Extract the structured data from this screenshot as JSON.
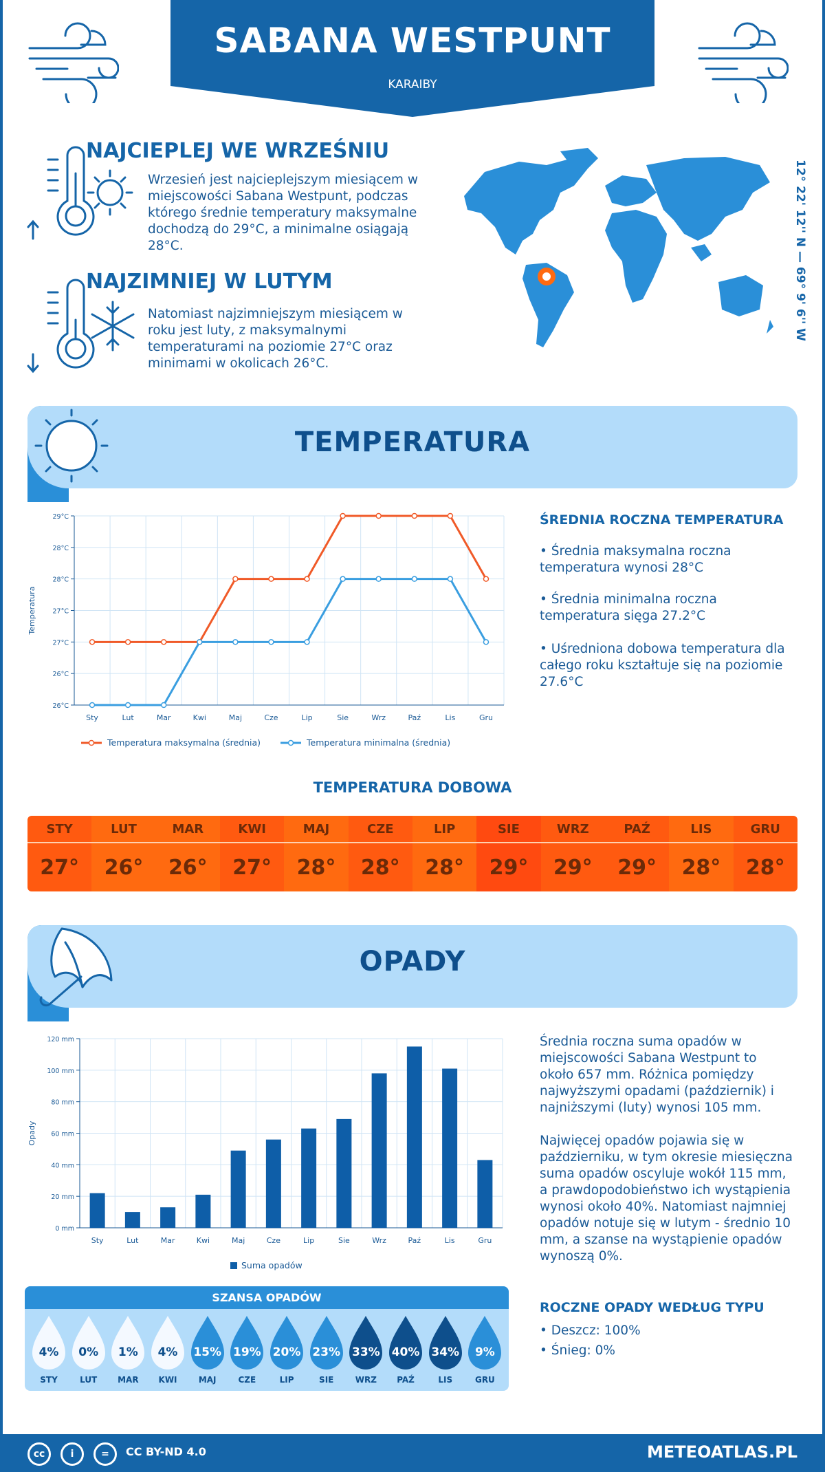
{
  "header": {
    "title": "SABANA WESTPUNT",
    "subtitle": "KARAIBY"
  },
  "warmest": {
    "title": "NAJCIEPLEJ WE WRZEŚNIU",
    "text": "Wrzesień jest najcieplejszym miesiącem w miejscowości Sabana Westpunt, podczas którego średnie temperatury maksymalne dochodzą do 29°C, a minimalne osiągają 28°C."
  },
  "coldest": {
    "title": "NAJZIMNIEJ W LUTYM",
    "text": "Natomiast najzimniejszym miesiącem w roku jest luty, z maksymalnymi temperaturami na poziomie 27°C oraz minimami w okolicach 26°C."
  },
  "coords": "12° 22' 12'' N — 69° 9' 6'' W",
  "temperature_section": {
    "title": "TEMPERATURA",
    "side_title": "ŚREDNIA ROCZNA TEMPERATURA",
    "bullets": [
      "• Średnia maksymalna roczna temperatura wynosi 28°C",
      "• Średnia minimalna roczna temperatura sięga 27.2°C",
      "• Uśredniona dobowa temperatura dla całego roku kształtuje się na poziomie 27.6°C"
    ]
  },
  "daily": {
    "title": "TEMPERATURA DOBOWA",
    "months": [
      "STY",
      "LUT",
      "MAR",
      "KWI",
      "MAJ",
      "CZE",
      "LIP",
      "SIE",
      "WRZ",
      "PAŹ",
      "LIS",
      "GRU"
    ],
    "values": [
      "27°",
      "26°",
      "26°",
      "27°",
      "28°",
      "28°",
      "28°",
      "29°",
      "29°",
      "29°",
      "28°",
      "28°"
    ],
    "colors": [
      "#ff5a10",
      "#ff6a10",
      "#ff6a10",
      "#ff5a10",
      "#ff6a10",
      "#ff5a10",
      "#ff6a10",
      "#ff4a10",
      "#ff5a10",
      "#ff5a10",
      "#ff6a10",
      "#ff5a10"
    ]
  },
  "precip_section": {
    "title": "OPADY",
    "text1": "Średnia roczna suma opadów w miejscowości Sabana Westpunt to około 657 mm. Różnica pomiędzy najwyższymi opadami (październik) i najniższymi (luty) wynosi 105 mm.",
    "text2": "Najwięcej opadów pojawia się w październiku, w tym okresie miesięczna suma opadów oscyluje wokół 115 mm, a prawdopodobieństwo ich wystąpienia wynosi około 40%. Natomiast najmniej opadów notuje się w lutym - średnio 10 mm, a szanse na wystąpienie opadów wynoszą 0%.",
    "type_title": "ROCZNE OPADY WEDŁUG TYPU",
    "types": [
      "• Deszcz: 100%",
      "• Śnieg: 0%"
    ]
  },
  "chance": {
    "title": "SZANSA OPADÓW",
    "months": [
      "STY",
      "LUT",
      "MAR",
      "KWI",
      "MAJ",
      "CZE",
      "LIP",
      "SIE",
      "WRZ",
      "PAŹ",
      "LIS",
      "GRU"
    ],
    "values": [
      "4%",
      "0%",
      "1%",
      "4%",
      "15%",
      "19%",
      "20%",
      "23%",
      "33%",
      "40%",
      "34%",
      "9%"
    ],
    "levels": [
      0,
      0,
      0,
      0,
      1,
      1,
      1,
      1,
      2,
      2,
      2,
      1
    ]
  },
  "footer": {
    "license": "CC BY-ND 4.0",
    "brand": "METEOATLAS.PL"
  },
  "chart_data": [
    {
      "type": "line",
      "ylabel": "Temperatura",
      "categories": [
        "Sty",
        "Lut",
        "Mar",
        "Kwi",
        "Maj",
        "Cze",
        "Lip",
        "Sie",
        "Wrz",
        "Paź",
        "Lis",
        "Gru"
      ],
      "yticks": [
        "26°C",
        "26°C",
        "27°C",
        "27°C",
        "28°C",
        "28°C",
        "29°C"
      ],
      "ylim": [
        26,
        29
      ],
      "series": [
        {
          "name": "Temperatura maksymalna (średnia)",
          "color": "#f05a28",
          "values": [
            27,
            27,
            27,
            27,
            28,
            28,
            28,
            29,
            29,
            29,
            29,
            28
          ]
        },
        {
          "name": "Temperatura minimalna (średnia)",
          "color": "#3a9ee0",
          "values": [
            26,
            26,
            26,
            27,
            27,
            27,
            27,
            28,
            28,
            28,
            28,
            27
          ]
        }
      ],
      "grid": true,
      "legend": "bottom"
    },
    {
      "type": "bar",
      "ylabel": "Opady",
      "categories": [
        "Sty",
        "Lut",
        "Mar",
        "Kwi",
        "Maj",
        "Cze",
        "Lip",
        "Sie",
        "Wrz",
        "Paź",
        "Lis",
        "Gru"
      ],
      "yticks": [
        "0 mm",
        "20 mm",
        "40 mm",
        "60 mm",
        "80 mm",
        "100 mm",
        "120 mm"
      ],
      "ylim": [
        0,
        120
      ],
      "series": [
        {
          "name": "Suma opadów",
          "color": "#0e5ea8",
          "values": [
            22,
            10,
            13,
            21,
            49,
            56,
            63,
            69,
            98,
            115,
            101,
            43
          ]
        }
      ],
      "grid": true,
      "legend": "bottom"
    }
  ]
}
